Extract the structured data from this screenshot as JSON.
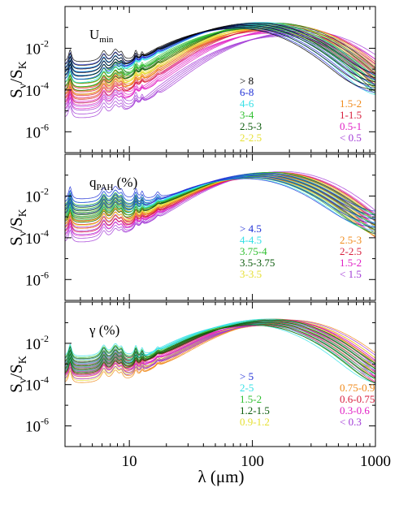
{
  "figure": {
    "xlabel": "λ (μm)",
    "ylabel_main": "S",
    "ylabel_sub1": "ν",
    "ylabel_mid": "/S",
    "ylabel_sub2": "K"
  },
  "chart_data": [
    {
      "type": "line",
      "panel": "top",
      "title_main": "U",
      "title_sub": "min",
      "title_rest": "",
      "x_scale": "log",
      "y_scale": "log",
      "xlim": [
        3,
        1000
      ],
      "ylim": [
        1e-07,
        1
      ],
      "x_ticks": [
        10,
        100,
        1000
      ],
      "y_ticks": [
        0.01,
        0.0001,
        1e-06
      ],
      "y_tick_labels": [
        {
          "base": "10",
          "exp": "-2"
        },
        {
          "base": "10",
          "exp": "-4"
        },
        {
          "base": "10",
          "exp": "-6"
        }
      ],
      "legend": [
        {
          "label": "> 8",
          "color": "#000000"
        },
        {
          "label": "6-8",
          "color": "#1f2fd6"
        },
        {
          "label": "4-6",
          "color": "#33e0e6"
        },
        {
          "label": "3-4",
          "color": "#2fbf2f"
        },
        {
          "label": "2.5-3",
          "color": "#0a5a0a"
        },
        {
          "label": "2-2.5",
          "color": "#e6e033"
        },
        {
          "label": "1.5-2",
          "color": "#f08a1a"
        },
        {
          "label": "1-1.5",
          "color": "#d81e3c"
        },
        {
          "label": "0.5-1",
          "color": "#e01ec4"
        },
        {
          "label": "< 0.5",
          "color": "#a23ad6"
        }
      ],
      "series": [
        {
          "color": "#a23ad6",
          "peak_um": 220,
          "peak_level": 0.05,
          "pah_level": 3e-05
        },
        {
          "color": "#e01ec4",
          "peak_um": 180,
          "peak_level": 0.07,
          "pah_level": 8e-05
        },
        {
          "color": "#d81e3c",
          "peak_um": 160,
          "peak_level": 0.09,
          "pah_level": 0.00015
        },
        {
          "color": "#f08a1a",
          "peak_um": 150,
          "peak_level": 0.1,
          "pah_level": 0.00025
        },
        {
          "color": "#e6e033",
          "peak_um": 140,
          "peak_level": 0.11,
          "pah_level": 0.0004
        },
        {
          "color": "#0a5a0a",
          "peak_um": 130,
          "peak_level": 0.12,
          "pah_level": 0.0006
        },
        {
          "color": "#2fbf2f",
          "peak_um": 120,
          "peak_level": 0.12,
          "pah_level": 0.0009
        },
        {
          "color": "#33e0e6",
          "peak_um": 100,
          "peak_level": 0.13,
          "pah_level": 0.0014
        },
        {
          "color": "#1f2fd6",
          "peak_um": 95,
          "peak_level": 0.12,
          "pah_level": 0.002
        },
        {
          "color": "#000000",
          "peak_um": 90,
          "peak_level": 0.12,
          "pah_level": 0.0028
        }
      ]
    },
    {
      "type": "line",
      "panel": "middle",
      "title_main": "q",
      "title_sub": "PAH",
      "title_rest": "(%)",
      "x_scale": "log",
      "y_scale": "log",
      "xlim": [
        3,
        1000
      ],
      "ylim": [
        1e-07,
        1
      ],
      "x_ticks": [
        10,
        100,
        1000
      ],
      "y_ticks": [
        0.01,
        0.0001,
        1e-06
      ],
      "y_tick_labels": [
        {
          "base": "10",
          "exp": "-2"
        },
        {
          "base": "10",
          "exp": "-4"
        },
        {
          "base": "10",
          "exp": "-6"
        }
      ],
      "legend": [
        {
          "label": "> 4.5",
          "color": "#1f2fd6"
        },
        {
          "label": "4-4.5",
          "color": "#33e0e6"
        },
        {
          "label": "3.75-4",
          "color": "#2fbf2f"
        },
        {
          "label": "3.5-3.75",
          "color": "#0a5a0a"
        },
        {
          "label": "3-3.5",
          "color": "#e6e033"
        },
        {
          "label": "2.5-3",
          "color": "#f08a1a"
        },
        {
          "label": "2-2.5",
          "color": "#d81e3c"
        },
        {
          "label": "1.5-2",
          "color": "#e01ec4"
        },
        {
          "label": "< 1.5",
          "color": "#a23ad6"
        }
      ],
      "series": [
        {
          "color": "#a23ad6",
          "peak_um": 150,
          "peak_level": 0.11,
          "pah_level": 0.0004
        },
        {
          "color": "#e01ec4",
          "peak_um": 140,
          "peak_level": 0.1,
          "pah_level": 0.0008
        },
        {
          "color": "#d81e3c",
          "peak_um": 135,
          "peak_level": 0.1,
          "pah_level": 0.0012
        },
        {
          "color": "#f08a1a",
          "peak_um": 130,
          "peak_level": 0.1,
          "pah_level": 0.0018
        },
        {
          "color": "#e6e033",
          "peak_um": 125,
          "peak_level": 0.1,
          "pah_level": 0.0025
        },
        {
          "color": "#0a5a0a",
          "peak_um": 120,
          "peak_level": 0.1,
          "pah_level": 0.0035
        },
        {
          "color": "#2fbf2f",
          "peak_um": 115,
          "peak_level": 0.1,
          "pah_level": 0.0045
        },
        {
          "color": "#33e0e6",
          "peak_um": 110,
          "peak_level": 0.09,
          "pah_level": 0.006
        },
        {
          "color": "#1f2fd6",
          "peak_um": 105,
          "peak_level": 0.09,
          "pah_level": 0.009
        }
      ]
    },
    {
      "type": "line",
      "panel": "bottom",
      "title_main": "γ",
      "title_sub": "",
      "title_rest": "(%)",
      "x_scale": "log",
      "y_scale": "log",
      "xlim": [
        3,
        1000
      ],
      "ylim": [
        1e-07,
        1
      ],
      "x_ticks": [
        10,
        100,
        1000
      ],
      "y_ticks": [
        0.01,
        0.0001,
        1e-06
      ],
      "y_tick_labels": [
        {
          "base": "10",
          "exp": "-2"
        },
        {
          "base": "10",
          "exp": "-4"
        },
        {
          "base": "10",
          "exp": "-6"
        }
      ],
      "legend": [
        {
          "label": "> 5",
          "color": "#1f2fd6"
        },
        {
          "label": "2-5",
          "color": "#33e0e6"
        },
        {
          "label": "1.5-2",
          "color": "#2fbf2f"
        },
        {
          "label": "1.2-1.5",
          "color": "#0a5a0a"
        },
        {
          "label": "0.9-1.2",
          "color": "#e6e033"
        },
        {
          "label": "0.75-0.9",
          "color": "#f08a1a"
        },
        {
          "label": "0.6-0.75",
          "color": "#d81e3c"
        },
        {
          "label": "0.3-0.6",
          "color": "#e01ec4"
        },
        {
          "label": "< 0.3",
          "color": "#a23ad6"
        }
      ],
      "series": [
        {
          "color": "#f08a1a",
          "peak_um": 170,
          "peak_level": 0.1,
          "pah_level": 0.0008
        },
        {
          "color": "#e6e033",
          "peak_um": 150,
          "peak_level": 0.1,
          "pah_level": 0.001
        },
        {
          "color": "#a23ad6",
          "peak_um": 160,
          "peak_level": 0.1,
          "pah_level": 0.0012
        },
        {
          "color": "#e01ec4",
          "peak_um": 140,
          "peak_level": 0.1,
          "pah_level": 0.0016
        },
        {
          "color": "#d81e3c",
          "peak_um": 130,
          "peak_level": 0.11,
          "pah_level": 0.002
        },
        {
          "color": "#2fbf2f",
          "peak_um": 120,
          "peak_level": 0.11,
          "pah_level": 0.0025
        },
        {
          "color": "#33e0e6",
          "peak_um": 110,
          "peak_level": 0.11,
          "pah_level": 0.003
        },
        {
          "color": "#0a5a0a",
          "peak_um": 125,
          "peak_level": 0.1,
          "pah_level": 0.0022
        }
      ]
    }
  ]
}
